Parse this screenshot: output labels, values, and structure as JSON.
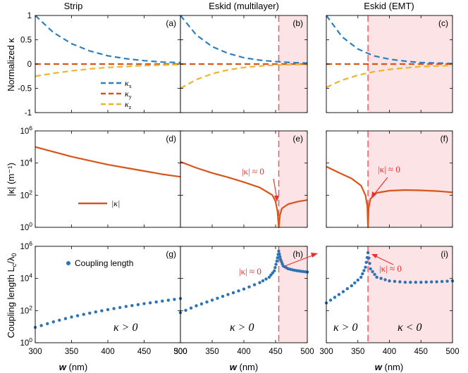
{
  "colors": {
    "kx": "#2f7ec0",
    "ky": "#d9541a",
    "kz": "#ecb52e",
    "kappa_abs": "#d9541a",
    "coupling": "#2c73b6",
    "divider": "#f24f4f",
    "shade": "#fbe3e6"
  },
  "columns": [
    "Strip",
    "Eskid (multilayer)",
    "Eskid (EMT)"
  ],
  "panel_labels": [
    "(a)",
    "(b)",
    "(c)",
    "(d)",
    "(e)",
    "(f)",
    "(g)",
    "(h)",
    "(i)"
  ],
  "ylabels": {
    "row1": "Normalized κ",
    "row2": "|κ| (m⁻¹)",
    "row3_main": "Coupling length L",
    "row3_sub1": "c",
    "row3_mid": "/λ",
    "row3_sub2": "0"
  },
  "xlabel_main": "w",
  "xlabel_unit": " (nm)",
  "x_ticks": [
    "300",
    "350",
    "400",
    "450",
    "500"
  ],
  "row1_yticks": [
    "1",
    "0.5",
    "0",
    "-0.5",
    "-1"
  ],
  "log_ticks_base": "10",
  "row2_exponents": [
    "0",
    "2",
    "4",
    "6"
  ],
  "row3_exponents": [
    "0",
    "2",
    "4",
    "6"
  ],
  "legend_row1": {
    "kx": "κ",
    "kx_sub": "x",
    "ky": "κ",
    "ky_sub": "y",
    "kz": "κ",
    "kz_sub": "z"
  },
  "legend_row2": "|κ|",
  "legend_row3": "Coupling length",
  "notes": {
    "approx_zero": "|κ| ≈ 0",
    "kappa_pos": "κ > 0",
    "kappa_neg": "κ < 0"
  },
  "chart_data": [
    {
      "type": "line",
      "title": "Strip",
      "panel": "(a)",
      "xlim": [
        300,
        500
      ],
      "ylim": [
        -1,
        1
      ],
      "xlabel": "",
      "ylabel": "Normalized κ",
      "x": [
        300,
        325,
        350,
        375,
        400,
        425,
        450,
        475,
        500
      ],
      "series": [
        {
          "name": "κx",
          "values": [
            1.0,
            0.65,
            0.42,
            0.27,
            0.17,
            0.11,
            0.07,
            0.04,
            0.03
          ]
        },
        {
          "name": "κy",
          "values": [
            0,
            0,
            0,
            0,
            0,
            0,
            0,
            0,
            0
          ]
        },
        {
          "name": "κz",
          "values": [
            -0.25,
            -0.19,
            -0.14,
            -0.1,
            -0.07,
            -0.05,
            -0.03,
            -0.02,
            -0.01
          ]
        }
      ]
    },
    {
      "type": "line",
      "title": "Eskid (multilayer)",
      "panel": "(b)",
      "xlim": [
        300,
        500
      ],
      "ylim": [
        -1,
        1
      ],
      "x": [
        300,
        325,
        350,
        375,
        400,
        425,
        450,
        475,
        500
      ],
      "series": [
        {
          "name": "κx",
          "values": [
            1.0,
            0.6,
            0.36,
            0.22,
            0.13,
            0.08,
            0.05,
            0.03,
            0.02
          ]
        },
        {
          "name": "κy",
          "values": [
            0,
            0,
            0,
            0,
            0,
            0,
            0,
            0,
            0
          ]
        },
        {
          "name": "κz",
          "values": [
            -0.5,
            -0.32,
            -0.2,
            -0.12,
            -0.07,
            -0.04,
            -0.02,
            -0.01,
            -0.01
          ]
        }
      ],
      "vertical_line_x": 455
    },
    {
      "type": "line",
      "title": "Eskid (EMT)",
      "panel": "(c)",
      "xlim": [
        300,
        500
      ],
      "ylim": [
        -1,
        1
      ],
      "x": [
        300,
        325,
        350,
        375,
        400,
        425,
        450,
        475,
        500
      ],
      "series": [
        {
          "name": "κx",
          "values": [
            1.0,
            0.56,
            0.31,
            0.17,
            0.1,
            0.06,
            0.03,
            0.02,
            0.01
          ]
        },
        {
          "name": "κy",
          "values": [
            0,
            0,
            0,
            0,
            0,
            0,
            0,
            0,
            0
          ]
        },
        {
          "name": "κz",
          "values": [
            -0.48,
            -0.33,
            -0.23,
            -0.16,
            -0.11,
            -0.08,
            -0.05,
            -0.04,
            -0.03
          ]
        }
      ],
      "vertical_line_x": 366
    },
    {
      "type": "line",
      "panel": "(d)",
      "xlim": [
        300,
        500
      ],
      "ylim": [
        1,
        1000000
      ],
      "yscale": "log",
      "ylabel": "|κ| (m⁻¹)",
      "x": [
        300,
        325,
        350,
        375,
        400,
        425,
        450,
        475,
        500
      ],
      "series": [
        {
          "name": "|κ|",
          "values": [
            100000,
            50000,
            25000,
            14000,
            8000,
            5000,
            3200,
            2000,
            1400
          ]
        }
      ]
    },
    {
      "type": "line",
      "panel": "(e)",
      "xlim": [
        300,
        500
      ],
      "ylim": [
        1,
        1000000
      ],
      "yscale": "log",
      "x": [
        300,
        325,
        350,
        375,
        400,
        425,
        445,
        450,
        453,
        455,
        457,
        460,
        470,
        485,
        500
      ],
      "series": [
        {
          "name": "|κ|",
          "values": [
            12000,
            5000,
            2400,
            1300,
            650,
            300,
            100,
            40,
            10,
            1,
            6,
            15,
            28,
            40,
            50
          ]
        }
      ],
      "vertical_line_x": 455
    },
    {
      "type": "line",
      "panel": "(f)",
      "xlim": [
        300,
        500
      ],
      "ylim": [
        1,
        1000000
      ],
      "yscale": "log",
      "x": [
        300,
        320,
        340,
        355,
        362,
        365,
        366,
        367,
        370,
        380,
        400,
        425,
        450,
        475,
        500
      ],
      "series": [
        {
          "name": "|κ|",
          "values": [
            6000,
            2500,
            1100,
            400,
            100,
            20,
            1,
            15,
            60,
            140,
            190,
            210,
            200,
            180,
            150
          ]
        }
      ],
      "vertical_line_x": 366
    },
    {
      "type": "scatter",
      "panel": "(g)",
      "xlim": [
        300,
        500
      ],
      "ylim": [
        1,
        1000000
      ],
      "yscale": "log",
      "ylabel": "Coupling length Lc/λ0",
      "x": [
        300,
        325,
        350,
        375,
        400,
        425,
        450,
        475,
        500
      ],
      "series": [
        {
          "name": "Coupling length",
          "values": [
            9,
            20,
            40,
            70,
            115,
            180,
            270,
            390,
            560
          ]
        }
      ]
    },
    {
      "type": "scatter",
      "panel": "(h)",
      "xlim": [
        300,
        500
      ],
      "ylim": [
        1,
        1000000
      ],
      "yscale": "log",
      "x": [
        300,
        325,
        350,
        375,
        400,
        425,
        440,
        448,
        452,
        455,
        458,
        462,
        470,
        480,
        490,
        500
      ],
      "series": [
        {
          "name": "Coupling length",
          "values": [
            75,
            200,
            450,
            1000,
            2200,
            5500,
            12000,
            30000,
            120000,
            500000,
            150000,
            60000,
            40000,
            32000,
            28000,
            25000
          ]
        }
      ],
      "vertical_line_x": 455
    },
    {
      "type": "scatter",
      "panel": "(i)",
      "xlim": [
        300,
        500
      ],
      "ylim": [
        1,
        1000000
      ],
      "yscale": "log",
      "x": [
        300,
        320,
        340,
        355,
        362,
        366,
        370,
        380,
        400,
        425,
        450,
        475,
        500
      ],
      "series": [
        {
          "name": "Coupling length",
          "values": [
            300,
            1000,
            3500,
            12000,
            50000,
            400000,
            40000,
            12000,
            7000,
            5800,
            5800,
            6200,
            7000
          ]
        }
      ],
      "vertical_line_x": 366
    }
  ]
}
